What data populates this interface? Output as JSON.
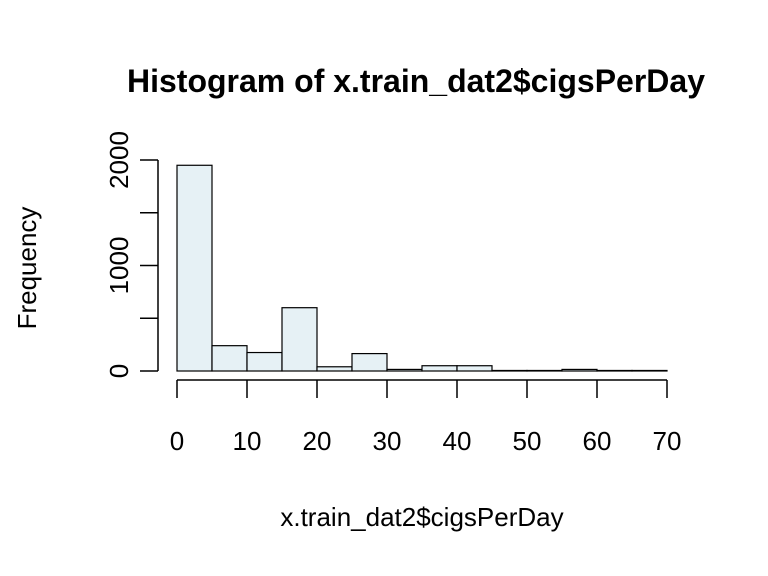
{
  "chart_data": {
    "type": "bar",
    "title": "Histogram of x.train_dat2$cigsPerDay",
    "xlabel": "x.train_dat2$cigsPerDay",
    "ylabel": "Frequency",
    "bin_edges": [
      0,
      5,
      10,
      15,
      20,
      25,
      30,
      35,
      40,
      45,
      50,
      55,
      60,
      65,
      70
    ],
    "values": [
      1950,
      240,
      175,
      600,
      40,
      165,
      15,
      50,
      50,
      5,
      5,
      15,
      5,
      5
    ],
    "xlim": [
      0,
      70
    ],
    "ylim": [
      0,
      2000
    ],
    "x_ticks": [
      "0",
      "10",
      "20",
      "30",
      "40",
      "50",
      "60",
      "70"
    ],
    "y_ticks": [
      "0",
      "1000",
      "2000"
    ],
    "bar_fill": "#e6f1f5",
    "grid": false
  }
}
